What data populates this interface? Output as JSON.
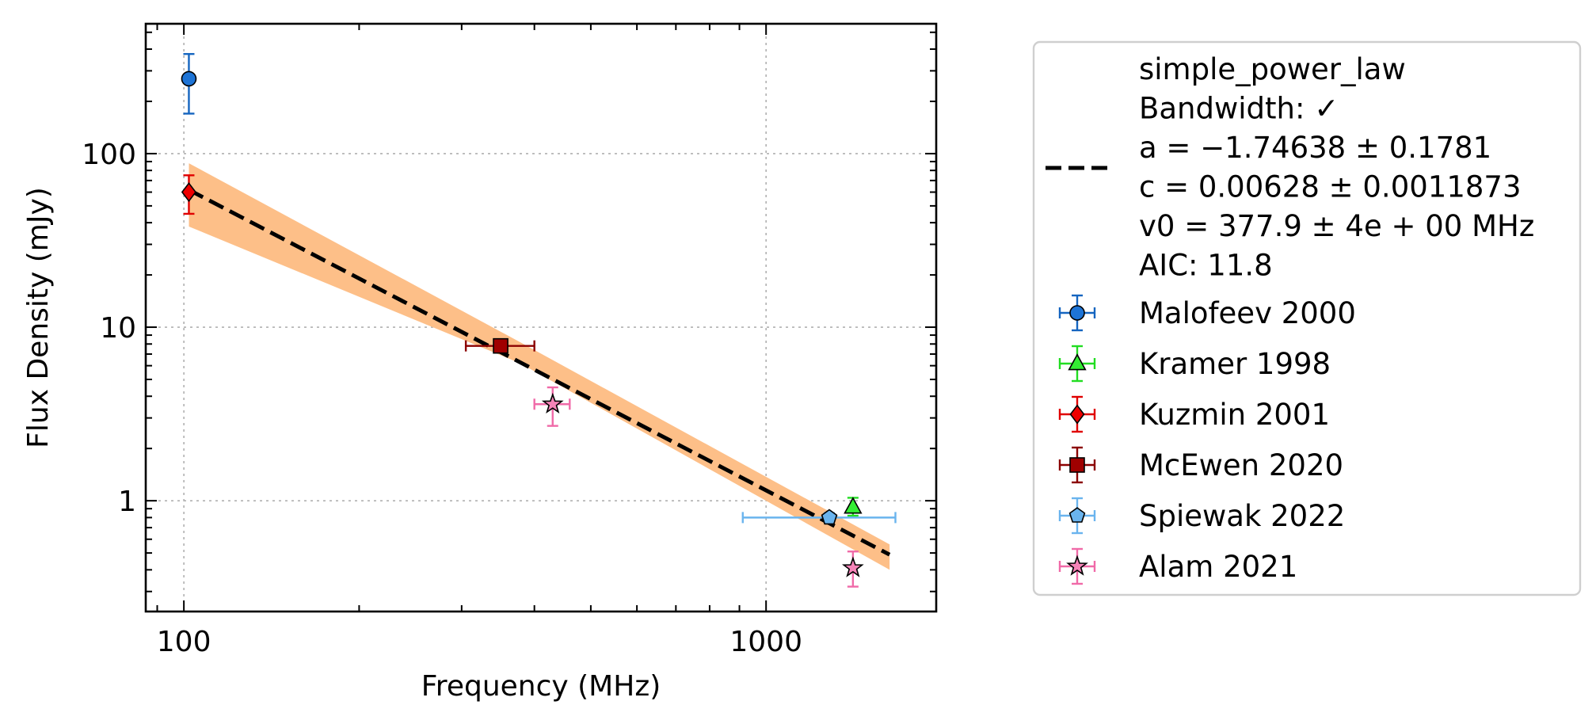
{
  "chart_data": {
    "type": "scatter",
    "title": "",
    "xlabel": "Frequency (MHz)",
    "ylabel": "Flux Density (mJy)",
    "xscale": "log",
    "yscale": "log",
    "xlim": [
      86,
      1960
    ],
    "ylim": [
      0.23,
      560
    ],
    "grid": true,
    "legend_position": "outside-right",
    "x_ticks": [
      {
        "value": 100,
        "label": "100"
      },
      {
        "value": 1000,
        "label": "1000"
      }
    ],
    "y_ticks": [
      {
        "value": 1,
        "label": "1"
      },
      {
        "value": 10,
        "label": "10"
      },
      {
        "value": 100,
        "label": "100"
      }
    ],
    "fit": {
      "model": "simple_power_law",
      "legend_lines": [
        "simple_power_law",
        "Bandwidth: ✓",
        "a = −1.74638 ± 0.1781",
        "c = 0.00628 ± 0.0011873",
        "v0 = 377.9 ± 4e + 00 MHz",
        "AIC: 11.8"
      ],
      "a": -1.74638,
      "c": 0.00628,
      "v0": 377.9,
      "x_range": [
        102,
        1630
      ],
      "band": [
        {
          "x": 102,
          "lo": 38,
          "hi": 88
        },
        {
          "x": 377.9,
          "lo": 6.2,
          "hi": 8.2
        },
        {
          "x": 1630,
          "lo": 0.4,
          "hi": 0.56
        }
      ],
      "line_color": "#000000",
      "band_color": "#fdbf88"
    },
    "series": [
      {
        "name": "Malofeev 2000",
        "marker": "circle",
        "color": "#1565c0",
        "fill": "#1e74d6",
        "points": [
          {
            "x": 102,
            "y": 270,
            "yerr_lo": 100,
            "yerr_hi": 105
          }
        ]
      },
      {
        "name": "Kramer 1998",
        "marker": "triangle",
        "color": "#22dd22",
        "fill": "#33ee33",
        "points": [
          {
            "x": 1410,
            "y": 0.92,
            "yerr_lo": 0.1,
            "yerr_hi": 0.12
          }
        ]
      },
      {
        "name": "Kuzmin 2001",
        "marker": "diamond",
        "color": "#e00000",
        "fill": "#ee0000",
        "points": [
          {
            "x": 102,
            "y": 60,
            "yerr_lo": 15,
            "yerr_hi": 15
          }
        ]
      },
      {
        "name": "McEwen 2020",
        "marker": "square",
        "color": "#8b0000",
        "fill": "#a00000",
        "points": [
          {
            "x": 350,
            "y": 7.8,
            "yerr_lo": 0.6,
            "yerr_hi": 0.6,
            "xerr_lo": 45,
            "xerr_hi": 50
          }
        ]
      },
      {
        "name": "Spiewak 2022",
        "marker": "pentagon",
        "color": "#6ab4ee",
        "fill": "#6ab4ee",
        "points": [
          {
            "x": 1284,
            "y": 0.8,
            "yerr_lo": 0.05,
            "yerr_hi": 0.05,
            "xerr_lo": 372,
            "xerr_hi": 384
          }
        ]
      },
      {
        "name": "Alam 2021",
        "marker": "star",
        "color": "#f06aa8",
        "fill": "#f584b8",
        "points": [
          {
            "x": 430,
            "y": 3.6,
            "yerr_lo": 0.9,
            "yerr_hi": 0.9,
            "xerr_lo": 30,
            "xerr_hi": 30
          },
          {
            "x": 1410,
            "y": 0.41,
            "yerr_lo": 0.09,
            "yerr_hi": 0.1
          }
        ]
      }
    ]
  }
}
